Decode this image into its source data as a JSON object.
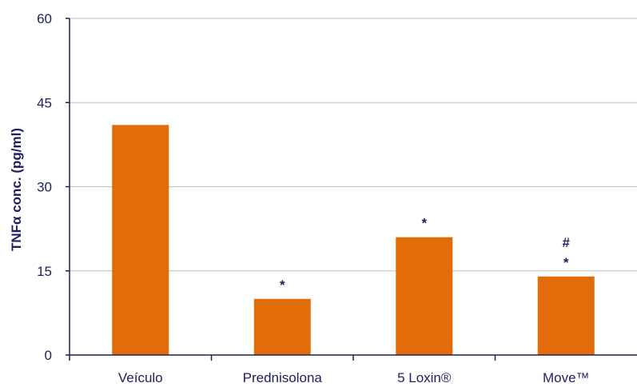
{
  "chart_data": {
    "type": "bar",
    "categories": [
      "Veículo",
      "Prednisolona",
      "5 Loxin®",
      "Move™"
    ],
    "values": [
      41,
      10,
      21,
      14
    ],
    "annotations": [
      [],
      [
        "*"
      ],
      [
        "*"
      ],
      [
        "#",
        "*"
      ]
    ],
    "ylabel": "TNFα conc. (pg/ml)",
    "xlabel": "",
    "title": "",
    "ylim": [
      0,
      60
    ],
    "yticks": [
      0,
      15,
      30,
      45,
      60
    ],
    "grid": true,
    "bar_color": "#e36c0a",
    "axis_color": "#1f1f5e",
    "grid_color": "#bfbfbf"
  }
}
